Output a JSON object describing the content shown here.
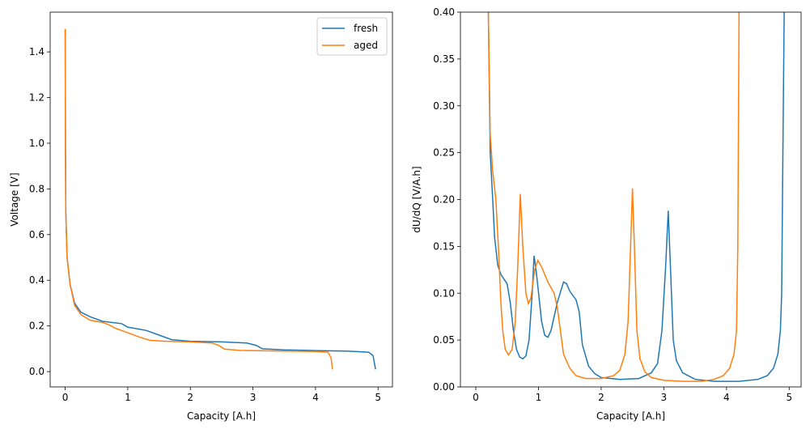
{
  "colors": {
    "fresh": "#1f77b4",
    "aged": "#ff7f0e"
  },
  "chart_data": [
    {
      "type": "line",
      "xlabel": "Capacity [A.h]",
      "ylabel": "Voltage [V]",
      "xlim": [
        -0.24,
        5.23
      ],
      "ylim": [
        -0.067,
        1.574
      ],
      "xticks": [
        0,
        1,
        2,
        3,
        4,
        5
      ],
      "xtick_labels": [
        "0",
        "1",
        "2",
        "3",
        "4",
        "5"
      ],
      "yticks": [
        0,
        0.2,
        0.4,
        0.6,
        0.8,
        1.0,
        1.2,
        1.4
      ],
      "ytick_labels": [
        "0.0",
        "0.2",
        "0.4",
        "0.6",
        "0.8",
        "1.0",
        "1.2",
        "1.4"
      ],
      "legend": {
        "placement": "top-right",
        "entries": [
          "fresh",
          "aged"
        ]
      },
      "grid": false,
      "series": [
        {
          "name": "fresh",
          "x": [
            0,
            0.005,
            0.01,
            0.03,
            0.08,
            0.15,
            0.25,
            0.4,
            0.6,
            0.9,
            1.0,
            1.3,
            1.5,
            1.7,
            2.0,
            2.5,
            2.9,
            3.05,
            3.15,
            3.5,
            4.0,
            4.5,
            4.85,
            4.92,
            4.96
          ],
          "y": [
            1.5,
            1.0,
            0.7,
            0.5,
            0.38,
            0.3,
            0.26,
            0.24,
            0.22,
            0.21,
            0.195,
            0.18,
            0.16,
            0.14,
            0.133,
            0.13,
            0.125,
            0.115,
            0.1,
            0.095,
            0.092,
            0.09,
            0.085,
            0.07,
            0.01
          ]
        },
        {
          "name": "aged",
          "x": [
            0,
            0.005,
            0.01,
            0.03,
            0.08,
            0.15,
            0.25,
            0.4,
            0.6,
            0.7,
            0.8,
            1.0,
            1.2,
            1.35,
            1.6,
            2.0,
            2.35,
            2.45,
            2.55,
            2.8,
            3.5,
            4.0,
            4.2,
            4.25,
            4.27
          ],
          "y": [
            1.5,
            1.0,
            0.7,
            0.5,
            0.38,
            0.29,
            0.25,
            0.225,
            0.215,
            0.205,
            0.19,
            0.17,
            0.15,
            0.137,
            0.133,
            0.13,
            0.125,
            0.115,
            0.098,
            0.093,
            0.09,
            0.088,
            0.085,
            0.06,
            0.01
          ]
        }
      ]
    },
    {
      "type": "line",
      "xlabel": "Capacity [A.h]",
      "ylabel": "dU/dQ [V/A.h]",
      "xlim": [
        -0.245,
        5.19
      ],
      "ylim": [
        0,
        0.4
      ],
      "xticks": [
        0,
        1,
        2,
        3,
        4,
        5
      ],
      "xtick_labels": [
        "0",
        "1",
        "2",
        "3",
        "4",
        "5"
      ],
      "yticks": [
        0,
        0.05,
        0.1,
        0.15,
        0.2,
        0.25,
        0.3,
        0.35,
        0.4
      ],
      "ytick_labels": [
        "0.00",
        "0.05",
        "0.10",
        "0.15",
        "0.20",
        "0.25",
        "0.30",
        "0.35",
        "0.40"
      ],
      "grid": false,
      "series": [
        {
          "name": "fresh",
          "x": [
            0.2,
            0.23,
            0.27,
            0.3,
            0.35,
            0.4,
            0.5,
            0.55,
            0.6,
            0.65,
            0.7,
            0.75,
            0.8,
            0.85,
            0.9,
            0.93,
            0.97,
            1.05,
            1.1,
            1.15,
            1.2,
            1.3,
            1.4,
            1.45,
            1.5,
            1.6,
            1.65,
            1.7,
            1.8,
            1.9,
            2.0,
            2.3,
            2.6,
            2.8,
            2.9,
            2.97,
            3.03,
            3.07,
            3.11,
            3.15,
            3.2,
            3.3,
            3.5,
            3.8,
            4.2,
            4.5,
            4.65,
            4.75,
            4.82,
            4.86,
            4.88,
            4.9,
            4.92
          ],
          "y": [
            0.4,
            0.25,
            0.2,
            0.16,
            0.13,
            0.12,
            0.11,
            0.09,
            0.06,
            0.04,
            0.032,
            0.03,
            0.033,
            0.05,
            0.1,
            0.14,
            0.12,
            0.07,
            0.055,
            0.053,
            0.06,
            0.09,
            0.112,
            0.11,
            0.102,
            0.093,
            0.08,
            0.045,
            0.022,
            0.014,
            0.01,
            0.008,
            0.009,
            0.015,
            0.025,
            0.06,
            0.13,
            0.188,
            0.12,
            0.05,
            0.028,
            0.015,
            0.008,
            0.006,
            0.006,
            0.008,
            0.012,
            0.02,
            0.035,
            0.06,
            0.1,
            0.25,
            0.4
          ]
        },
        {
          "name": "aged",
          "x": [
            0.2,
            0.23,
            0.27,
            0.32,
            0.36,
            0.4,
            0.43,
            0.47,
            0.52,
            0.58,
            0.63,
            0.67,
            0.71,
            0.75,
            0.8,
            0.84,
            0.88,
            0.94,
            0.99,
            1.05,
            1.15,
            1.25,
            1.3,
            1.35,
            1.4,
            1.5,
            1.6,
            1.75,
            2.0,
            2.2,
            2.3,
            2.38,
            2.43,
            2.47,
            2.5,
            2.53,
            2.57,
            2.62,
            2.7,
            2.8,
            3.0,
            3.3,
            3.6,
            3.8,
            3.95,
            4.05,
            4.12,
            4.16,
            4.18,
            4.2
          ],
          "y": [
            0.4,
            0.27,
            0.23,
            0.2,
            0.15,
            0.09,
            0.06,
            0.04,
            0.034,
            0.04,
            0.07,
            0.13,
            0.206,
            0.15,
            0.1,
            0.089,
            0.095,
            0.125,
            0.135,
            0.128,
            0.112,
            0.1,
            0.085,
            0.06,
            0.035,
            0.02,
            0.012,
            0.009,
            0.009,
            0.012,
            0.018,
            0.035,
            0.07,
            0.15,
            0.212,
            0.15,
            0.06,
            0.03,
            0.016,
            0.01,
            0.007,
            0.006,
            0.006,
            0.008,
            0.012,
            0.02,
            0.035,
            0.06,
            0.15,
            0.4
          ]
        }
      ]
    }
  ]
}
